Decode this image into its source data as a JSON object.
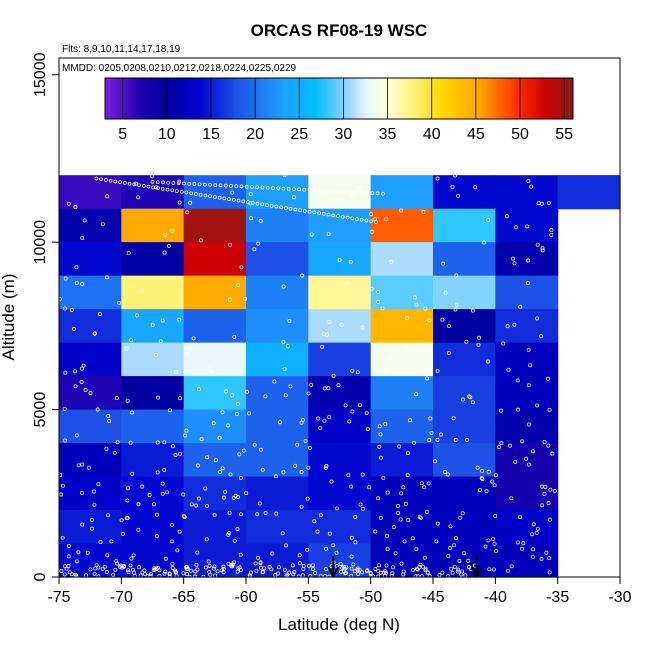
{
  "chart_data": {
    "type": "heatmap",
    "title": "ORCAS RF08-19 WSC",
    "annotations": {
      "flights": "Flts: 8,9,10,11,14,17,18,19",
      "dates": "MMDD: 0205,0208,0210,0212,0218,0224,0225,0229"
    },
    "xlabel": "Latitude (deg N)",
    "ylabel": "Altitude (m)",
    "xlim": [
      -75,
      -30
    ],
    "ylim": [
      0,
      15500
    ],
    "x_ticks": [
      -75,
      -70,
      -65,
      -60,
      -55,
      -50,
      -45,
      -40,
      -35,
      -30
    ],
    "y_ticks": [
      0,
      5000,
      10000,
      15000
    ],
    "x_tick_labels": [
      "-75",
      "-70",
      "-65",
      "-60",
      "-55",
      "-50",
      "-45",
      "-40",
      "-35",
      "-30"
    ],
    "y_tick_labels": [
      "0",
      "5000",
      "10000",
      "15000"
    ],
    "colorbar": {
      "min": 3,
      "max": 56,
      "ticks": [
        5,
        10,
        15,
        20,
        25,
        30,
        35,
        40,
        45,
        50,
        55
      ],
      "tick_labels": [
        "5",
        "10",
        "15",
        "20",
        "25",
        "30",
        "35",
        "40",
        "45",
        "50",
        "55"
      ],
      "stops": [
        [
          0.0,
          "#7B1FE0"
        ],
        [
          0.08,
          "#1A00B0"
        ],
        [
          0.13,
          "#0000A0"
        ],
        [
          0.2,
          "#0000CD"
        ],
        [
          0.28,
          "#1E50E6"
        ],
        [
          0.38,
          "#1EA0FF"
        ],
        [
          0.45,
          "#00BFFF"
        ],
        [
          0.52,
          "#9BD5FF"
        ],
        [
          0.56,
          "#E8F8FF"
        ],
        [
          0.6,
          "#FFFFE0"
        ],
        [
          0.66,
          "#FFF27A"
        ],
        [
          0.72,
          "#FFD700"
        ],
        [
          0.8,
          "#FFA500"
        ],
        [
          0.88,
          "#FF3000"
        ],
        [
          0.94,
          "#D00000"
        ],
        [
          1.0,
          "#8B1A1A"
        ]
      ]
    },
    "grid": {
      "lat_bins_start": [
        -75,
        -70,
        -65,
        -60,
        -55,
        -50,
        -45,
        -40,
        -35
      ],
      "lat_bin_width": 5,
      "alt_bins_start": [
        0,
        1000,
        2000,
        3000,
        4000,
        5000,
        6000,
        7000,
        8000,
        9000,
        10000,
        11000
      ],
      "alt_bin_height": 1000,
      "rows_top_to_bottom": [
        [
          6,
          7,
          19,
          23,
          34,
          23,
          14,
          14,
          16
        ],
        [
          11,
          45,
          55,
          21,
          23,
          48,
          28,
          14,
          null
        ],
        [
          14,
          10,
          53,
          18,
          24,
          31,
          19,
          11,
          null
        ],
        [
          20,
          38,
          45,
          21,
          37,
          29,
          30,
          18,
          null
        ],
        [
          16,
          24,
          19,
          22,
          31,
          44,
          10,
          16,
          null
        ],
        [
          13,
          31,
          33,
          25,
          17,
          34,
          16,
          12,
          null
        ],
        [
          7,
          10,
          28,
          19,
          11,
          21,
          17,
          12,
          null
        ],
        [
          18,
          19,
          22,
          19,
          13,
          19,
          17,
          11,
          null
        ],
        [
          12,
          15,
          19,
          19,
          14,
          15,
          18,
          8,
          null
        ],
        [
          13,
          14,
          16,
          15,
          14,
          12,
          12,
          8,
          null
        ],
        [
          15,
          14,
          15,
          16,
          16,
          12,
          12,
          13,
          null
        ],
        [
          14,
          14,
          15,
          15,
          17,
          12,
          12,
          12,
          null
        ]
      ]
    },
    "arrow_markers_lat": [
      -53,
      -41.5
    ]
  }
}
